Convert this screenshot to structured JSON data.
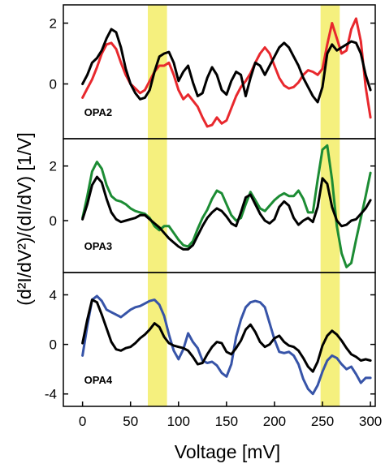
{
  "chart_data": {
    "type": "line",
    "xlabel": "Voltage [mV]",
    "ylabel": "(d²I/dV²)/(dI/dV) [1/V]",
    "xlim": [
      -20,
      305
    ],
    "xticks": [
      0,
      50,
      100,
      150,
      200,
      250,
      300
    ],
    "highlight_bands": [
      {
        "x": [
          68,
          88
        ],
        "color": "#f5f07e"
      },
      {
        "x": [
          248,
          268
        ],
        "color": "#f5f07e"
      }
    ],
    "panels": [
      {
        "label": "OPA2",
        "ylim": [
          -1.8,
          2.6
        ],
        "yticks": [
          0,
          2
        ],
        "series": [
          {
            "color": "#e8282d",
            "x": [
              0,
              5,
              10,
              15,
              20,
              25,
              30,
              35,
              40,
              45,
              50,
              55,
              60,
              65,
              70,
              75,
              80,
              85,
              90,
              95,
              100,
              105,
              110,
              115,
              120,
              125,
              130,
              135,
              140,
              145,
              150,
              155,
              160,
              165,
              170,
              175,
              180,
              185,
              190,
              195,
              200,
              205,
              210,
              215,
              220,
              225,
              230,
              235,
              240,
              245,
              250,
              255,
              260,
              265,
              270,
              275,
              280,
              285,
              290,
              295,
              300
            ],
            "y": [
              -0.45,
              -0.15,
              0.15,
              0.55,
              1.0,
              1.3,
              1.35,
              1.15,
              0.7,
              0.3,
              0.0,
              -0.15,
              -0.3,
              -0.2,
              0.1,
              0.4,
              0.6,
              0.6,
              0.7,
              0.3,
              -0.2,
              -0.5,
              -0.35,
              -0.55,
              -0.75,
              -1.1,
              -1.4,
              -1.35,
              -1.1,
              -1.3,
              -1.2,
              -0.8,
              -0.4,
              -0.1,
              0.1,
              0.35,
              0.7,
              1.0,
              1.2,
              1.0,
              0.6,
              0.2,
              -0.05,
              -0.15,
              -0.1,
              0.05,
              0.3,
              0.45,
              0.4,
              0.3,
              0.5,
              1.3,
              2.0,
              1.5,
              1.0,
              1.1,
              1.8,
              2.15,
              1.4,
              -0.1,
              -1.1
            ]
          },
          {
            "color": "#000000",
            "x": [
              0,
              5,
              10,
              15,
              20,
              25,
              30,
              35,
              40,
              45,
              50,
              55,
              60,
              65,
              70,
              75,
              80,
              85,
              90,
              95,
              100,
              105,
              110,
              115,
              120,
              125,
              130,
              135,
              140,
              145,
              150,
              155,
              160,
              165,
              170,
              175,
              180,
              185,
              190,
              195,
              200,
              205,
              210,
              215,
              220,
              225,
              230,
              235,
              240,
              245,
              250,
              255,
              260,
              265,
              270,
              275,
              280,
              285,
              290,
              295,
              300
            ],
            "y": [
              0.0,
              0.3,
              0.7,
              0.85,
              1.1,
              1.5,
              1.8,
              1.7,
              1.2,
              0.5,
              0.0,
              -0.3,
              -0.5,
              -0.45,
              -0.2,
              0.4,
              0.9,
              1.0,
              1.05,
              0.7,
              0.1,
              0.4,
              0.6,
              0.05,
              -0.4,
              -0.3,
              0.2,
              0.55,
              0.3,
              -0.2,
              -0.35,
              0.1,
              0.4,
              0.3,
              -0.4,
              0.2,
              0.7,
              0.6,
              0.3,
              0.6,
              0.9,
              1.2,
              1.35,
              1.2,
              0.9,
              0.6,
              0.2,
              -0.1,
              -0.4,
              -0.6,
              -0.1,
              1.0,
              1.3,
              1.1,
              1.2,
              1.3,
              1.4,
              1.35,
              1.0,
              0.3,
              -0.2
            ]
          }
        ]
      },
      {
        "label": "OPA3",
        "ylim": [
          -1.9,
          3.0
        ],
        "yticks": [
          0,
          2
        ],
        "series": [
          {
            "color": "#1c8c34",
            "x": [
              0,
              5,
              10,
              15,
              20,
              25,
              30,
              35,
              40,
              45,
              50,
              55,
              60,
              65,
              70,
              75,
              80,
              85,
              90,
              95,
              100,
              105,
              110,
              115,
              120,
              125,
              130,
              135,
              140,
              145,
              150,
              155,
              160,
              165,
              170,
              175,
              180,
              185,
              190,
              195,
              200,
              205,
              210,
              215,
              220,
              225,
              230,
              235,
              240,
              245,
              250,
              255,
              260,
              265,
              270,
              275,
              280,
              285,
              290,
              295,
              300
            ],
            "y": [
              0.1,
              0.9,
              1.8,
              2.15,
              1.9,
              1.3,
              0.9,
              0.75,
              0.7,
              0.6,
              0.45,
              0.35,
              0.3,
              0.25,
              0.1,
              -0.2,
              -0.35,
              -0.2,
              -0.2,
              -0.45,
              -0.7,
              -0.9,
              -0.95,
              -0.75,
              -0.3,
              0.1,
              0.4,
              0.8,
              1.1,
              1.0,
              0.6,
              0.2,
              0.0,
              0.1,
              0.6,
              1.05,
              0.75,
              0.45,
              0.35,
              0.55,
              0.75,
              0.9,
              1.0,
              0.9,
              0.9,
              1.1,
              0.8,
              0.3,
              0.3,
              1.5,
              2.6,
              2.75,
              1.5,
              -0.2,
              -1.2,
              -1.7,
              -1.55,
              -0.7,
              0.1,
              0.9,
              1.75
            ]
          },
          {
            "color": "#000000",
            "x": [
              0,
              5,
              10,
              15,
              20,
              25,
              30,
              35,
              40,
              45,
              50,
              55,
              60,
              65,
              70,
              75,
              80,
              85,
              90,
              95,
              100,
              105,
              110,
              115,
              120,
              125,
              130,
              135,
              140,
              145,
              150,
              155,
              160,
              165,
              170,
              175,
              180,
              185,
              190,
              195,
              200,
              205,
              210,
              215,
              220,
              225,
              230,
              235,
              240,
              245,
              250,
              255,
              260,
              265,
              270,
              275,
              280,
              285,
              290,
              295,
              300
            ],
            "y": [
              0.05,
              0.6,
              1.3,
              1.6,
              1.4,
              0.8,
              0.3,
              0.05,
              -0.05,
              0.0,
              0.05,
              0.1,
              0.2,
              0.2,
              0.05,
              -0.1,
              -0.25,
              -0.45,
              -0.65,
              -0.8,
              -0.95,
              -1.05,
              -1.05,
              -0.9,
              -0.55,
              -0.2,
              0.1,
              0.3,
              0.45,
              0.35,
              0.15,
              -0.1,
              -0.2,
              0.3,
              0.85,
              0.95,
              0.6,
              0.25,
              0.0,
              -0.1,
              0.05,
              0.5,
              0.7,
              0.55,
              0.1,
              -0.15,
              0.0,
              0.1,
              -0.05,
              0.5,
              1.55,
              1.35,
              0.5,
              0.0,
              -0.2,
              -0.15,
              0.0,
              0.05,
              0.25,
              0.45,
              0.75
            ]
          }
        ]
      },
      {
        "label": "OPA4",
        "ylim": [
          -5.0,
          5.8
        ],
        "yticks": [
          -4,
          0,
          4
        ],
        "series": [
          {
            "color": "#3754a8",
            "x": [
              0,
              5,
              10,
              15,
              20,
              25,
              30,
              35,
              40,
              45,
              50,
              55,
              60,
              65,
              70,
              75,
              80,
              85,
              90,
              95,
              100,
              105,
              110,
              115,
              120,
              125,
              130,
              135,
              140,
              145,
              150,
              155,
              160,
              165,
              170,
              175,
              180,
              185,
              190,
              195,
              200,
              205,
              210,
              215,
              220,
              225,
              230,
              235,
              240,
              245,
              250,
              255,
              260,
              265,
              270,
              275,
              280,
              285,
              290,
              295,
              300
            ],
            "y": [
              -0.9,
              1.5,
              3.6,
              3.9,
              3.5,
              2.8,
              2.6,
              2.4,
              2.2,
              2.5,
              2.8,
              3.0,
              3.1,
              3.3,
              3.5,
              3.6,
              3.2,
              2.3,
              0.8,
              -0.5,
              -1.2,
              -0.4,
              0.9,
              0.2,
              -0.3,
              -1.3,
              -1.5,
              -1.4,
              -1.7,
              -2.3,
              -2.6,
              -1.6,
              0.6,
              2.0,
              3.0,
              3.4,
              3.5,
              3.4,
              3.0,
              1.7,
              0.4,
              -0.6,
              -0.7,
              -0.6,
              -0.9,
              -1.6,
              -2.8,
              -3.6,
              -4.0,
              -3.3,
              -2.2,
              -1.3,
              -0.9,
              -1.1,
              -1.6,
              -2.0,
              -1.8,
              -2.4,
              -3.1,
              -2.7,
              -2.7
            ]
          },
          {
            "color": "#000000",
            "x": [
              0,
              5,
              10,
              15,
              20,
              25,
              30,
              35,
              40,
              45,
              50,
              55,
              60,
              65,
              70,
              75,
              80,
              85,
              90,
              95,
              100,
              105,
              110,
              115,
              120,
              125,
              130,
              135,
              140,
              145,
              150,
              155,
              160,
              165,
              170,
              175,
              180,
              185,
              190,
              195,
              200,
              205,
              210,
              215,
              220,
              225,
              230,
              235,
              240,
              245,
              250,
              255,
              260,
              265,
              270,
              275,
              280,
              285,
              290,
              295,
              300
            ],
            "y": [
              0.1,
              2.0,
              3.6,
              3.4,
              2.4,
              1.3,
              0.2,
              -0.4,
              -0.5,
              -0.3,
              -0.2,
              0.1,
              0.5,
              0.8,
              1.2,
              1.7,
              1.4,
              0.6,
              0.1,
              -0.1,
              -0.2,
              -0.3,
              -0.5,
              -1.0,
              -1.6,
              -1.5,
              -0.8,
              -0.2,
              0.2,
              0.1,
              -0.6,
              -0.8,
              -0.3,
              0.3,
              1.2,
              1.6,
              1.0,
              0.2,
              -0.2,
              0.0,
              0.5,
              0.7,
              0.2,
              -0.1,
              -0.2,
              -0.5,
              -1.1,
              -1.8,
              -2.2,
              -1.4,
              -0.1,
              0.7,
              1.1,
              0.8,
              0.3,
              -0.3,
              -0.8,
              -1.0,
              -1.3,
              -1.2,
              -1.3
            ]
          }
        ]
      }
    ]
  }
}
